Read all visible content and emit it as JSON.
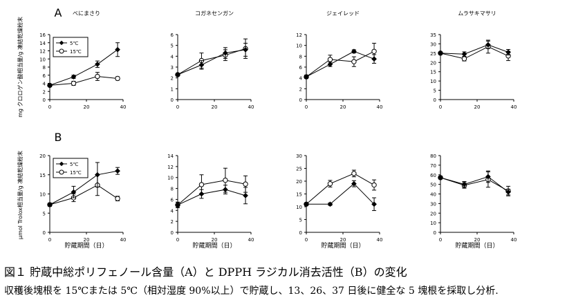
{
  "panel_labels": [
    "A",
    "B"
  ],
  "ylabels": [
    "mg クロロゲン酸相当量/g 凍結乾燥粉末",
    "μmol Trolox相当量/g 凍結乾燥粉末"
  ],
  "xlabel": "貯蔵期間（日）",
  "caption": {
    "title": "図１ 貯蔵中総ポリフェノール含量（A）と DPPH ラジカル消去活性（B）の変化",
    "note": "収穫後塊根を 15℃または 5℃（相対湿度 90%以上）で貯蔵し、13、26、37 日後に健全な 5 塊根を採取し分析."
  },
  "colors": {
    "line": "#000000",
    "open_marker_fill": "#ffffff"
  },
  "chart_data": [
    {
      "type": "line",
      "row": "A",
      "title": "べにまさり",
      "xlim": [
        0,
        40
      ],
      "ylim": [
        0,
        16
      ],
      "xticks": [
        0,
        20,
        40
      ],
      "yticks": [
        0,
        2,
        4,
        6,
        8,
        10,
        12,
        14,
        16
      ],
      "legend": "top-left",
      "x": [
        0,
        13,
        26,
        37
      ],
      "series": [
        {
          "name": "5℃",
          "marker": "filled-diamond",
          "values": [
            3.5,
            5.6,
            8.7,
            12.3
          ],
          "errors": [
            0.3,
            0.4,
            0.8,
            1.7
          ]
        },
        {
          "name": "15℃",
          "marker": "open-circle",
          "values": [
            3.5,
            4.0,
            5.7,
            5.2
          ],
          "errors": [
            0.3,
            0.5,
            1.0,
            0.4
          ]
        }
      ]
    },
    {
      "type": "line",
      "row": "A",
      "title": "コガネセンガン",
      "xlim": [
        0,
        40
      ],
      "ylim": [
        0,
        6
      ],
      "xticks": [
        0,
        20,
        40
      ],
      "yticks": [
        0,
        1,
        2,
        3,
        4,
        5,
        6
      ],
      "x": [
        0,
        13,
        26,
        37
      ],
      "series": [
        {
          "marker": "filled-diamond",
          "values": [
            2.3,
            3.2,
            4.3,
            4.6
          ],
          "errors": [
            0.1,
            0.4,
            0.5,
            0.6
          ]
        },
        {
          "marker": "open-circle",
          "values": [
            2.3,
            3.6,
            4.1,
            4.7
          ],
          "errors": [
            0.1,
            0.7,
            0.5,
            0.9
          ]
        }
      ]
    },
    {
      "type": "line",
      "row": "A",
      "title": "ジェイレッド",
      "xlim": [
        0,
        40
      ],
      "ylim": [
        0,
        12
      ],
      "xticks": [
        0,
        20,
        40
      ],
      "yticks": [
        0,
        2,
        4,
        6,
        8,
        10,
        12
      ],
      "x": [
        0,
        13,
        26,
        37
      ],
      "series": [
        {
          "marker": "filled-diamond",
          "values": [
            4.2,
            6.5,
            8.9,
            7.5
          ],
          "errors": [
            0.3,
            0.4,
            0.3,
            0.8
          ]
        },
        {
          "marker": "open-circle",
          "values": [
            4.2,
            7.4,
            7.0,
            8.9
          ],
          "errors": [
            0.3,
            0.8,
            0.9,
            1.5
          ]
        }
      ]
    },
    {
      "type": "line",
      "row": "A",
      "title": "ムラサキマサリ",
      "xlim": [
        0,
        40
      ],
      "ylim": [
        0,
        35
      ],
      "xticks": [
        0,
        20,
        40
      ],
      "yticks": [
        0,
        5,
        10,
        15,
        20,
        25,
        30,
        35
      ],
      "x": [
        0,
        13,
        26,
        37
      ],
      "series": [
        {
          "marker": "filled-diamond",
          "values": [
            25,
            24.5,
            29.5,
            25.5
          ],
          "errors": [
            0.5,
            1.2,
            2.0,
            1.5
          ]
        },
        {
          "marker": "open-circle",
          "values": [
            25,
            22,
            28.5,
            23.5
          ],
          "errors": [
            0.5,
            1.2,
            3.5,
            2.5
          ]
        }
      ]
    },
    {
      "type": "line",
      "row": "B",
      "xlim": [
        0,
        40
      ],
      "ylim": [
        0,
        20
      ],
      "xticks": [
        0,
        20,
        40
      ],
      "yticks": [
        0,
        5,
        10,
        15,
        20
      ],
      "legend": "top-left",
      "x": [
        0,
        13,
        26,
        37
      ],
      "series": [
        {
          "name": "5℃",
          "marker": "filled-diamond",
          "values": [
            7.2,
            10.5,
            15.0,
            16.0
          ],
          "errors": [
            0.4,
            1.5,
            3.2,
            0.9
          ]
        },
        {
          "name": "15℃",
          "marker": "open-circle",
          "values": [
            7.2,
            9.0,
            12.3,
            8.8
          ],
          "errors": [
            0.4,
            1.0,
            2.7,
            0.6
          ]
        }
      ]
    },
    {
      "type": "line",
      "row": "B",
      "xlim": [
        0,
        40
      ],
      "ylim": [
        0,
        14
      ],
      "xticks": [
        0,
        20,
        40
      ],
      "yticks": [
        0,
        2,
        4,
        6,
        8,
        10,
        12,
        14
      ],
      "x": [
        0,
        13,
        26,
        37
      ],
      "series": [
        {
          "marker": "filled-diamond",
          "values": [
            5.0,
            7.0,
            7.8,
            6.7
          ],
          "errors": [
            0.5,
            0.8,
            0.8,
            1.5
          ]
        },
        {
          "marker": "open-circle",
          "values": [
            5.0,
            8.7,
            9.5,
            8.8
          ],
          "errors": [
            0.5,
            1.8,
            2.2,
            1.5
          ]
        }
      ]
    },
    {
      "type": "line",
      "row": "B",
      "xlim": [
        0,
        40
      ],
      "ylim": [
        0,
        30
      ],
      "xticks": [
        0,
        20,
        40
      ],
      "yticks": [
        0,
        5,
        10,
        15,
        20,
        25,
        30
      ],
      "x": [
        0,
        13,
        26,
        37
      ],
      "series": [
        {
          "marker": "filled-diamond",
          "values": [
            11,
            11,
            19,
            11
          ],
          "errors": [
            0.5,
            0.5,
            1.2,
            2.5
          ]
        },
        {
          "marker": "open-circle",
          "values": [
            11,
            19,
            23,
            18.5
          ],
          "errors": [
            0.5,
            1.3,
            1.3,
            2.0
          ]
        }
      ]
    },
    {
      "type": "line",
      "row": "B",
      "xlim": [
        0,
        40
      ],
      "ylim": [
        0,
        80
      ],
      "xticks": [
        0,
        20,
        40
      ],
      "yticks": [
        0,
        10,
        20,
        30,
        40,
        50,
        60,
        70,
        80
      ],
      "x": [
        0,
        13,
        26,
        37
      ],
      "series": [
        {
          "marker": "filled-diamond",
          "values": [
            57,
            50,
            58,
            42
          ],
          "errors": [
            1.5,
            3,
            6,
            3
          ]
        },
        {
          "marker": "open-circle",
          "values": [
            57,
            49,
            55,
            43
          ],
          "errors": [
            1.5,
            3,
            8,
            5
          ]
        }
      ]
    }
  ]
}
